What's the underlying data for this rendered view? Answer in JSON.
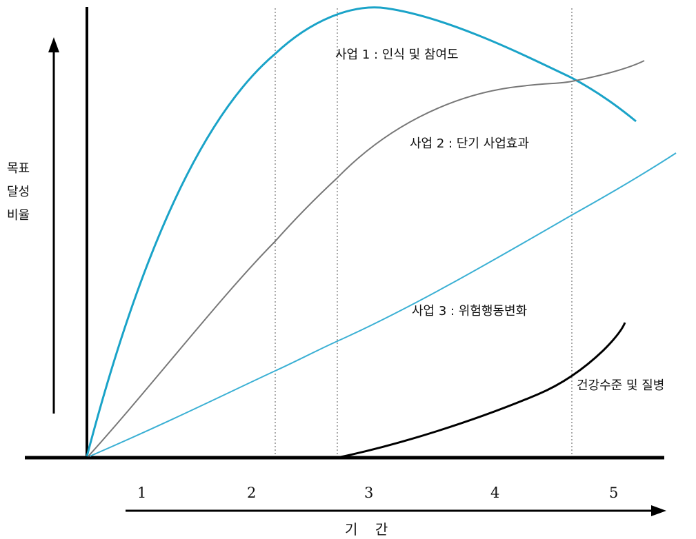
{
  "chart_data": {
    "type": "line",
    "xlabel": "기    간",
    "ylabel_lines": [
      "목표",
      "달성",
      "비율"
    ],
    "x_ticks": [
      "1",
      "2",
      "3",
      "4",
      "5"
    ],
    "grid": "vertical dotted lines at phase boundaries",
    "series": [
      {
        "name": "사업 1 : 인식 및 참여도",
        "color": "#1aa3c8",
        "points": [
          [
            0,
            0
          ],
          [
            0.5,
            0.45
          ],
          [
            1,
            0.75
          ],
          [
            1.5,
            0.92
          ],
          [
            2,
            0.99
          ],
          [
            2.5,
            1.0
          ],
          [
            3,
            0.98
          ],
          [
            3.5,
            0.93
          ],
          [
            4,
            0.86
          ],
          [
            4.5,
            0.76
          ]
        ]
      },
      {
        "name": "사업 2 : 단기 사업효과",
        "color": "#777777",
        "points": [
          [
            0,
            0
          ],
          [
            0.5,
            0.18
          ],
          [
            1,
            0.37
          ],
          [
            1.5,
            0.5
          ],
          [
            2,
            0.62
          ],
          [
            2.5,
            0.69
          ],
          [
            3,
            0.73
          ],
          [
            3.5,
            0.74
          ],
          [
            4,
            0.76
          ],
          [
            4.5,
            0.81
          ]
        ]
      },
      {
        "name": "사업 3 : 위험행동변화",
        "color": "#3bb0d4",
        "points": [
          [
            0,
            0
          ],
          [
            1,
            0.2
          ],
          [
            2,
            0.3
          ],
          [
            3,
            0.42
          ],
          [
            4,
            0.55
          ],
          [
            4.6,
            0.68
          ]
        ]
      },
      {
        "name": "건강수준 및 질병",
        "color": "#000000",
        "points": [
          [
            1.8,
            0
          ],
          [
            2.5,
            0.05
          ],
          [
            3,
            0.1
          ],
          [
            3.5,
            0.16
          ],
          [
            4,
            0.22
          ],
          [
            4.3,
            0.3
          ]
        ]
      }
    ]
  }
}
